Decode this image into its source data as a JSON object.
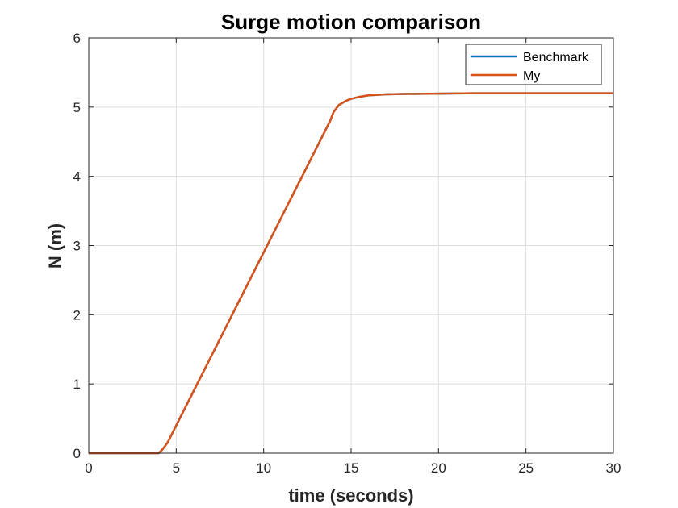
{
  "chart_data": {
    "type": "line",
    "title": "Surge motion comparison",
    "xlabel": "time (seconds)",
    "ylabel": "N (m)",
    "xlim": [
      0,
      30
    ],
    "ylim": [
      0,
      6
    ],
    "xticks": [
      0,
      5,
      10,
      15,
      20,
      25,
      30
    ],
    "yticks": [
      0,
      1,
      2,
      3,
      4,
      5,
      6
    ],
    "grid": true,
    "legend_position": "top-right",
    "series": [
      {
        "name": "Benchmark",
        "color": "#0072BD",
        "x": [
          0,
          4.0,
          4.2,
          4.5,
          5,
          6,
          7,
          8,
          9,
          10,
          11,
          12,
          13,
          13.8,
          14.0,
          14.3,
          14.7,
          15,
          15.5,
          16,
          17,
          18,
          20,
          22,
          25,
          30
        ],
        "y": [
          0,
          0,
          0.05,
          0.15,
          0.4,
          0.9,
          1.4,
          1.9,
          2.4,
          2.9,
          3.4,
          3.9,
          4.4,
          4.8,
          4.93,
          5.03,
          5.09,
          5.12,
          5.15,
          5.17,
          5.185,
          5.19,
          5.195,
          5.2,
          5.2,
          5.2
        ]
      },
      {
        "name": "My",
        "color": "#D95319",
        "x": [
          0,
          4.0,
          4.2,
          4.5,
          5,
          6,
          7,
          8,
          9,
          10,
          11,
          12,
          13,
          13.8,
          14.0,
          14.3,
          14.7,
          15,
          15.5,
          16,
          17,
          18,
          20,
          22,
          25,
          30
        ],
        "y": [
          0,
          0,
          0.05,
          0.15,
          0.4,
          0.9,
          1.4,
          1.9,
          2.4,
          2.9,
          3.4,
          3.9,
          4.4,
          4.8,
          4.93,
          5.03,
          5.09,
          5.12,
          5.15,
          5.17,
          5.185,
          5.19,
          5.195,
          5.2,
          5.2,
          5.2
        ]
      }
    ]
  }
}
